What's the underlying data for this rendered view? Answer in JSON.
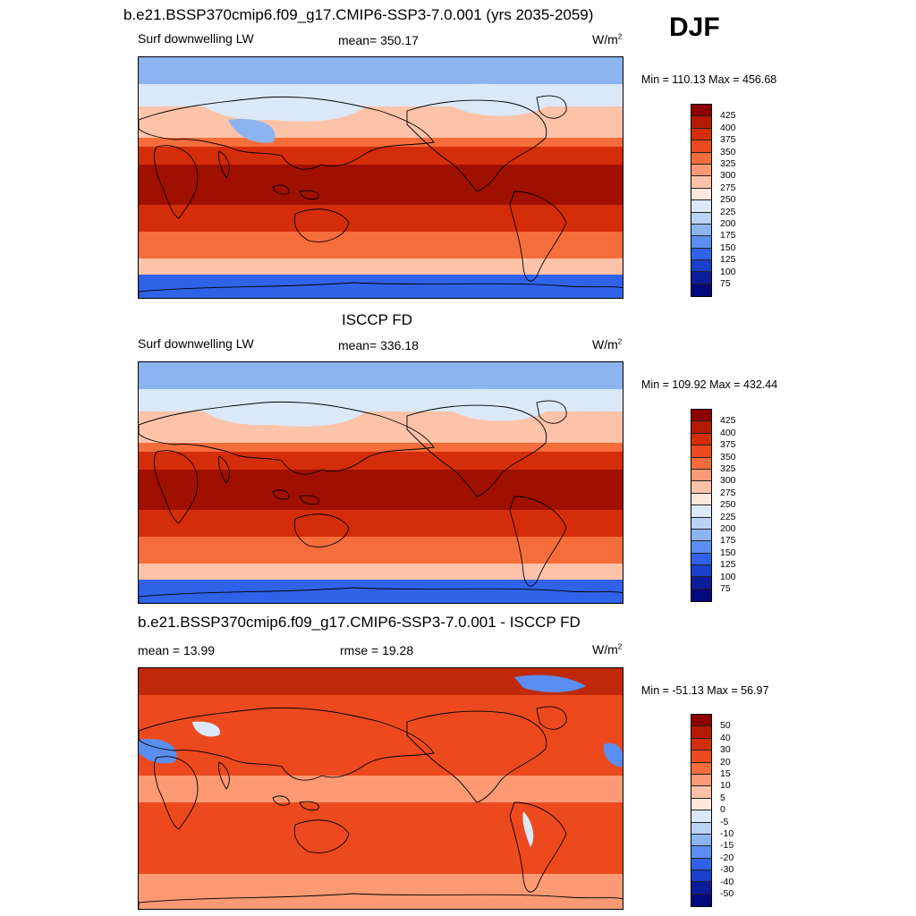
{
  "season": "DJF",
  "panels": [
    {
      "title": "b.e21.BSSP370cmip6.f09_g17.CMIP6-SSP3-7.0.001 (yrs 2035-2059)",
      "left_label": "Surf downwelling LW",
      "center_label": "mean= 350.17",
      "units": "W/m",
      "units_sup": "2",
      "minmax": "Min = 110.13 Max = 456.68"
    },
    {
      "title": "ISCCP FD",
      "left_label": "Surf downwelling LW",
      "center_label": "mean= 336.18",
      "units": "W/m",
      "units_sup": "2",
      "minmax": "Min = 109.92 Max = 432.44"
    },
    {
      "title": "b.e21.BSSP370cmip6.f09_g17.CMIP6-SSP3-7.0.001 - ISCCP FD",
      "left_label": "mean =  13.99",
      "center_label": "rmse =  19.28",
      "units": "W/m",
      "units_sup": "2",
      "minmax": "Min = -51.13 Max =  56.97"
    }
  ],
  "colorbars": {
    "absolute": {
      "labels": [
        "425",
        "400",
        "375",
        "350",
        "325",
        "300",
        "275",
        "250",
        "225",
        "200",
        "175",
        "150",
        "125",
        "100",
        "75"
      ],
      "colors": [
        "#8b0000",
        "#b51a00",
        "#d42d0a",
        "#ec4a1e",
        "#f66d3c",
        "#fb9a74",
        "#fdc3a8",
        "#fde8dc",
        "#dbe8f8",
        "#b9d3f5",
        "#8cb4f0",
        "#5a8ef0",
        "#2f62e8",
        "#1a3fc8",
        "#0c1c9a",
        "#05087a"
      ]
    },
    "difference": {
      "labels": [
        "50",
        "40",
        "30",
        "20",
        "15",
        "10",
        "5",
        "0",
        "-5",
        "-10",
        "-15",
        "-20",
        "-30",
        "-40",
        "-50"
      ],
      "colors": [
        "#8b0000",
        "#b51a00",
        "#d42d0a",
        "#ec4a1e",
        "#f66d3c",
        "#fb9a74",
        "#fdc3a8",
        "#fde8dc",
        "#dbe8f8",
        "#b9d3f5",
        "#8cb4f0",
        "#5a8ef0",
        "#2f62e8",
        "#1a3fc8",
        "#0c1c9a",
        "#05087a"
      ]
    }
  },
  "map_colors": {
    "polar_cold": "#2f62e8",
    "cold": "#8cb4f0",
    "cool": "#dbe8f8",
    "mild": "#fdc3a8",
    "warm": "#f66d3c",
    "hot": "#d42d0a",
    "tropical": "#a01000",
    "diff_base": "#ec4a1e",
    "diff_light": "#fb9a74",
    "diff_dark": "#c0280a",
    "diff_blue": "#5a8ef0",
    "land_line": "#000000"
  }
}
